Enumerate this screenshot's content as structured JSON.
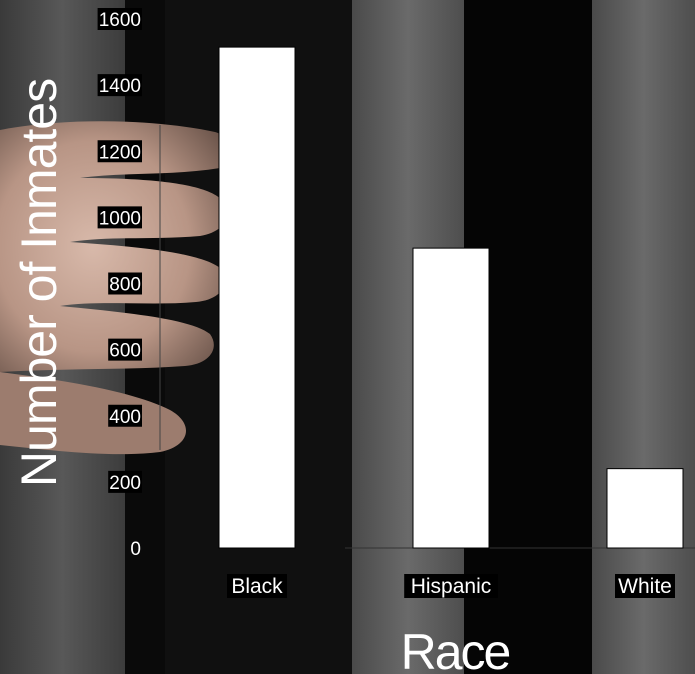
{
  "chart_data": {
    "type": "bar",
    "categories": [
      "Black",
      "Hispanic",
      "White"
    ],
    "values": [
      1515,
      907,
      240
    ],
    "xlabel": "Race",
    "ylabel": "Number of Inmates",
    "ylim": [
      0,
      1600
    ],
    "yticks": [
      "0",
      "200",
      "400",
      "600",
      "800",
      "1000",
      "1200",
      "1400",
      "1600"
    ],
    "grid": false,
    "legend": "none",
    "bar_color": "#ffffff",
    "bar_edge_color": "#000000"
  },
  "background": {
    "description_colors": [
      "#000000",
      "#2b2b2b",
      "#5a5a5a",
      "#c9a89a"
    ]
  }
}
